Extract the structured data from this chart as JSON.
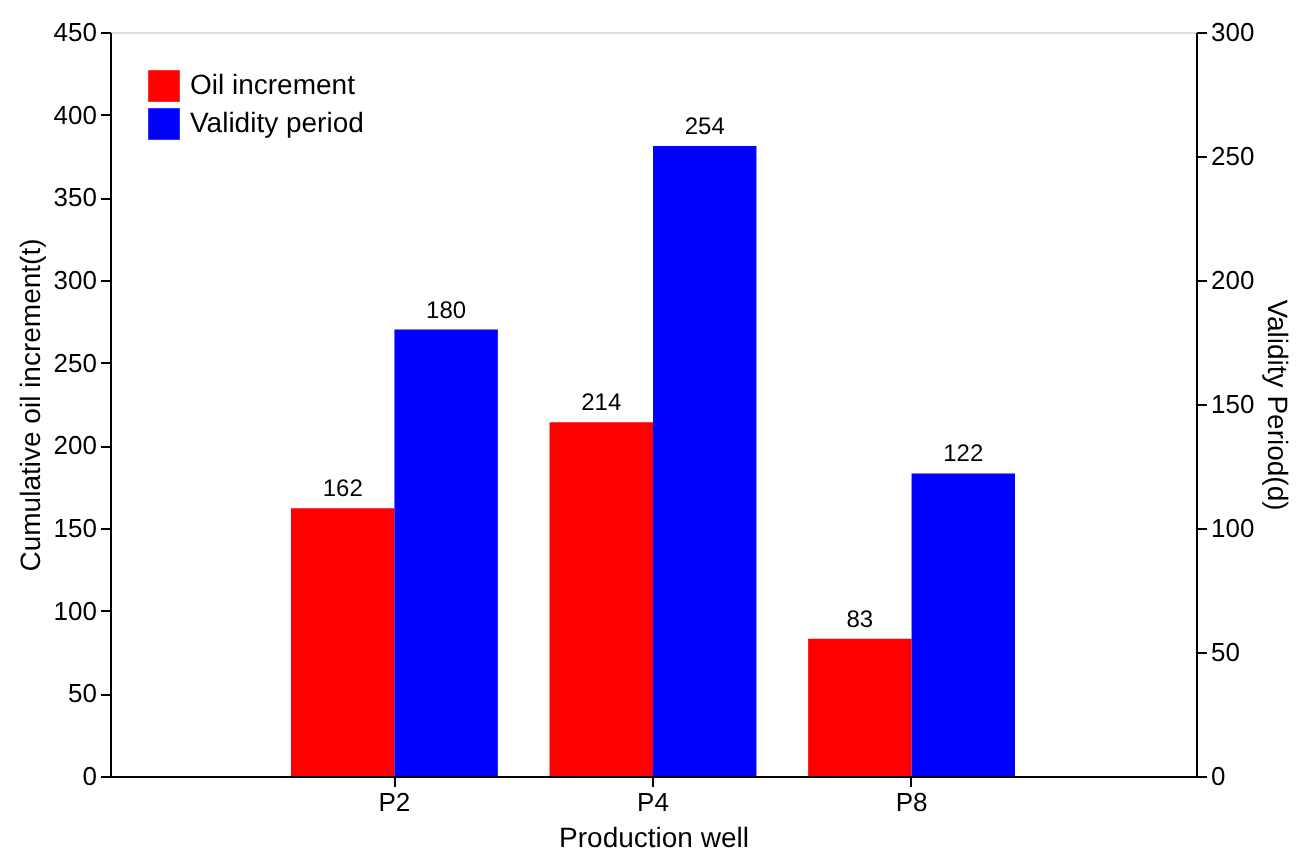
{
  "chart_data": {
    "type": "bar",
    "xlabel": "Production well",
    "ylabel": "Cumulative oil increment(t)",
    "y2label": "Validity Period(d)",
    "categories": [
      "P2",
      "P4",
      "P8"
    ],
    "series": [
      {
        "name": "Oil increment",
        "color": "#ff0000",
        "values": [
          162,
          214,
          83
        ]
      },
      {
        "name": "Validity period",
        "color": "#0000ff",
        "values": [
          180,
          254,
          122
        ],
        "axis": "y2"
      }
    ],
    "ylim": [
      0,
      450
    ],
    "yticks": [
      0,
      50,
      100,
      150,
      200,
      250,
      300,
      350,
      400,
      450
    ],
    "y2lim": [
      0,
      300
    ],
    "y2ticks": [
      0,
      50,
      100,
      150,
      200,
      250,
      300
    ],
    "data_labels": true,
    "legend": "top left",
    "grid": false
  }
}
